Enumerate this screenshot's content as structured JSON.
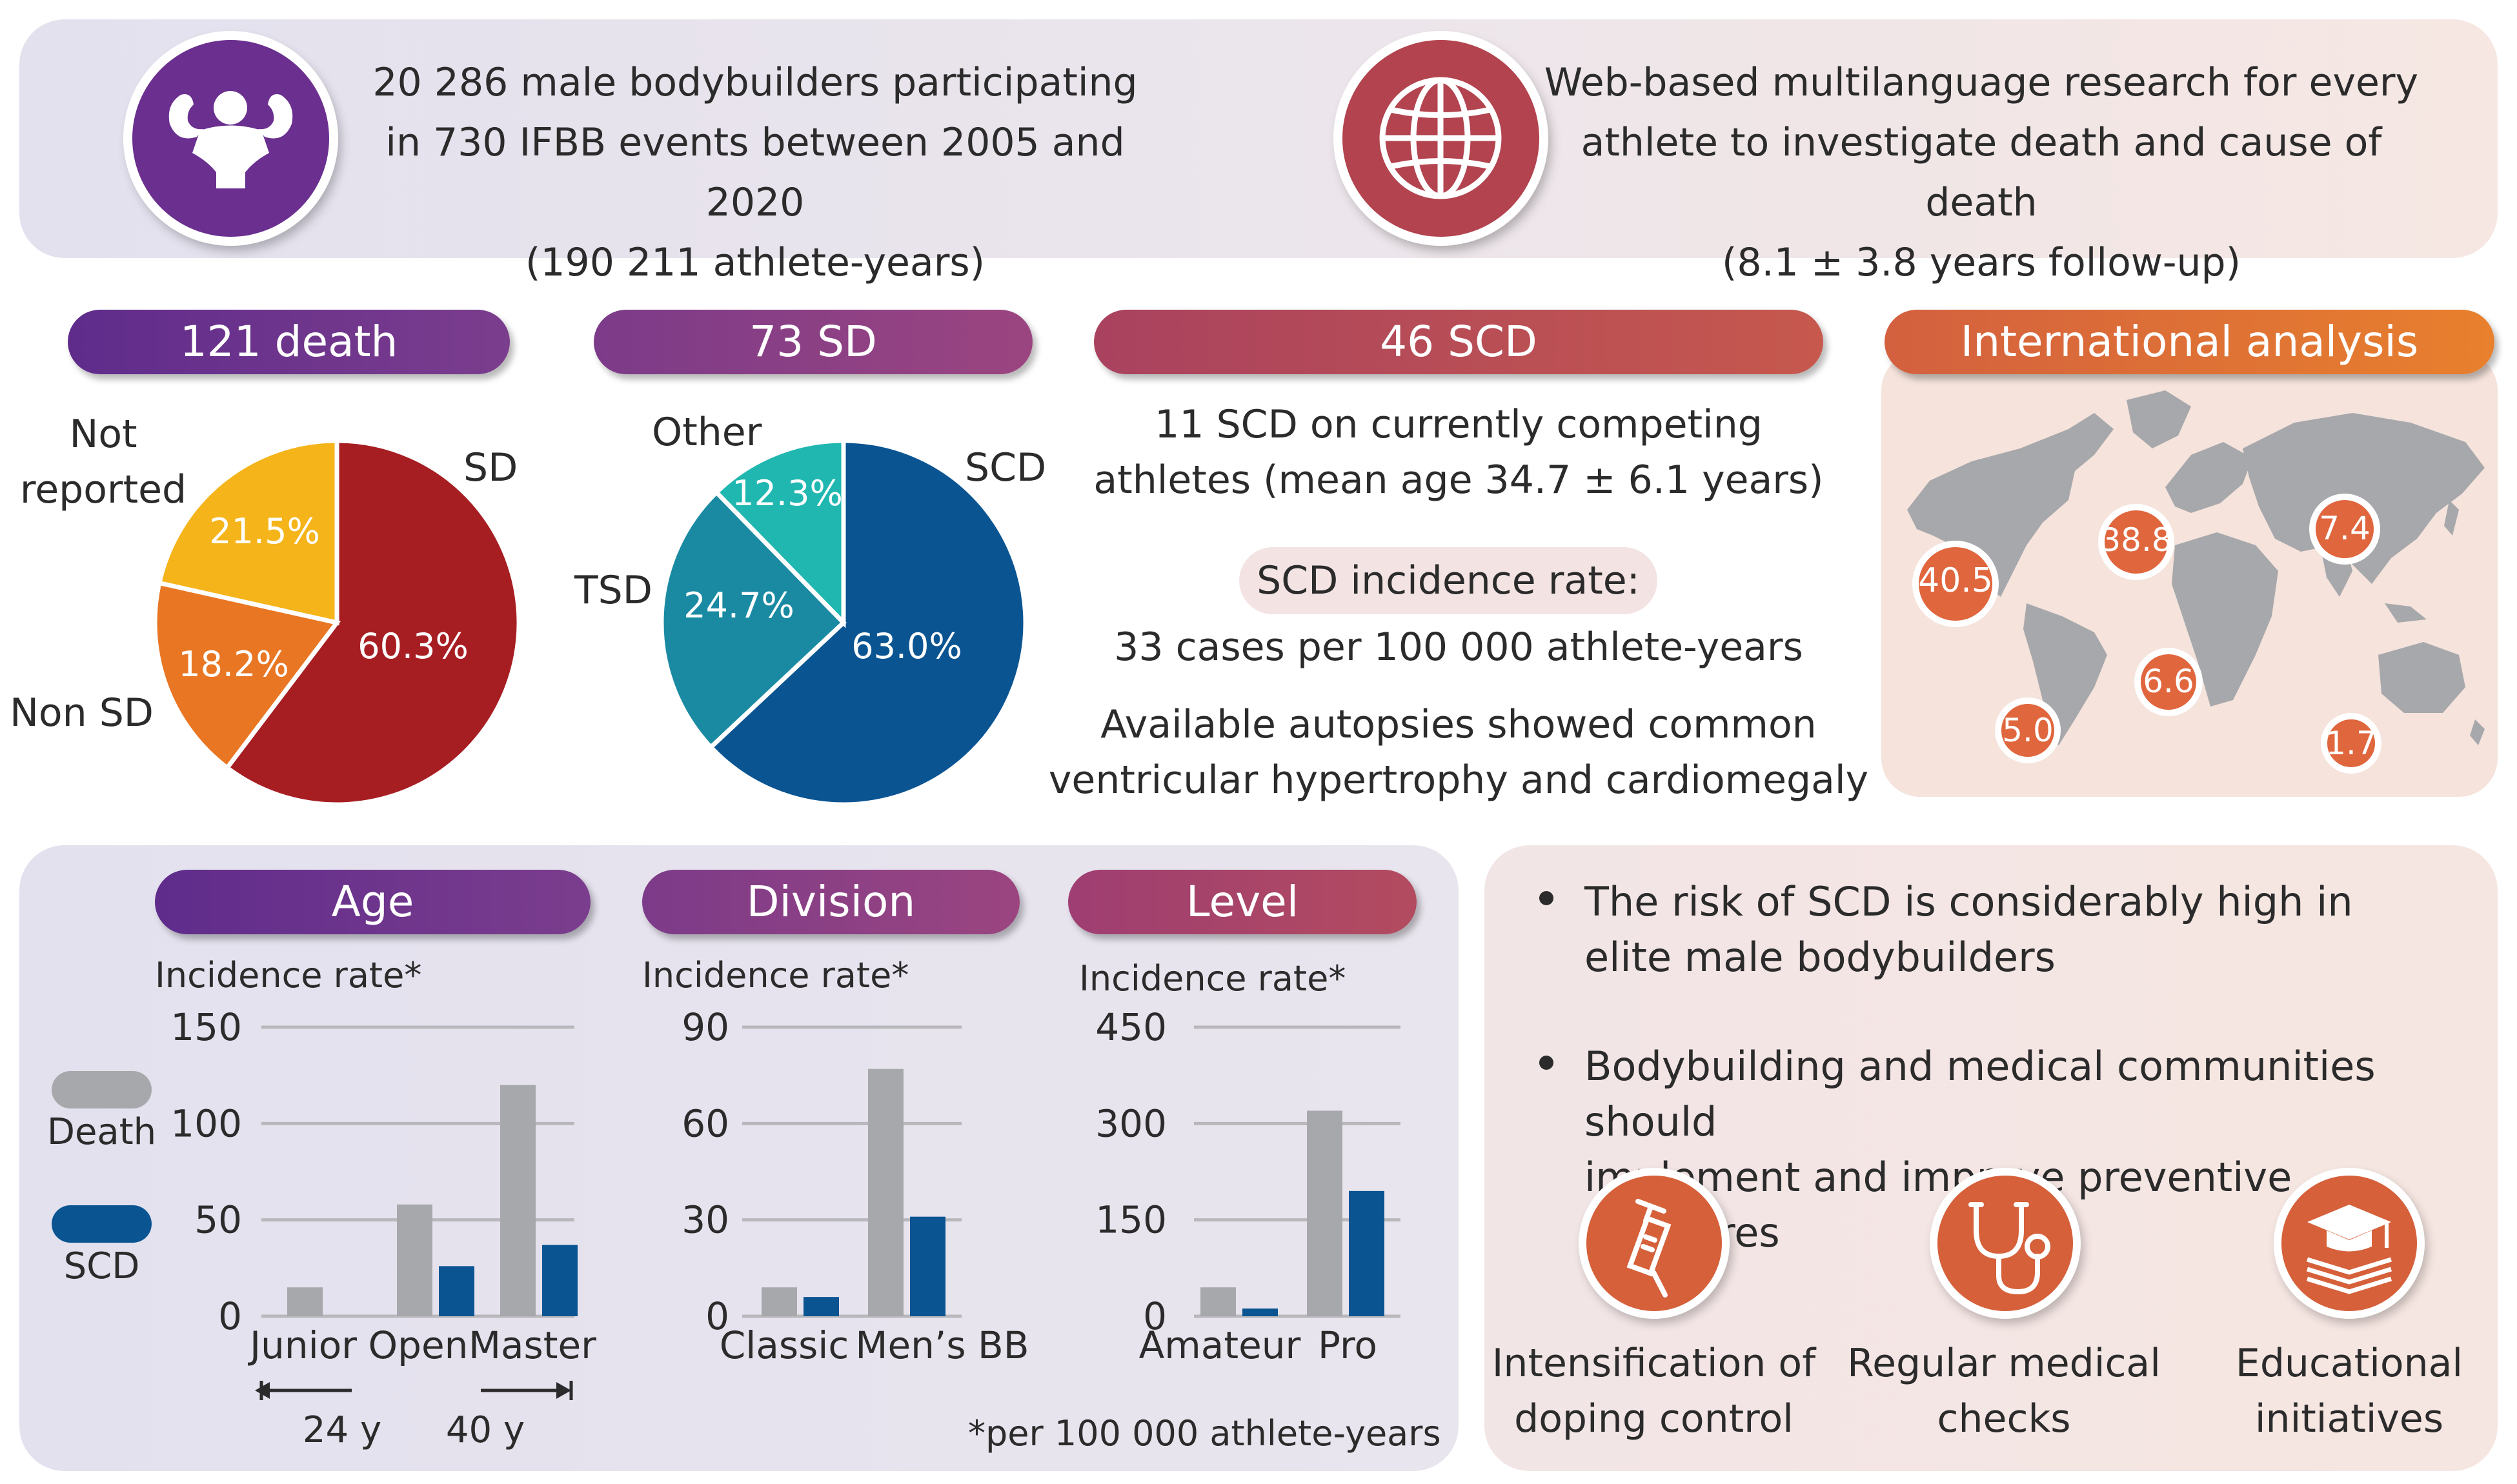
{
  "header": {
    "left_line1": "20 286 male bodybuilders participating",
    "left_line2": "in 730 IFBB events between 2005 and 2020",
    "left_line3": "(190 211 athlete-years)",
    "right_line1": "Web-based multilanguage research for every",
    "right_line2": "athlete to investigate death and cause of death",
    "right_line3": "(8.1 ± 3.8 years follow-up)",
    "left_icon": "bodybuilder-icon",
    "right_icon": "globe-icon"
  },
  "pills": {
    "death": "121 death",
    "sd": "73 SD",
    "scd": "46 SCD",
    "international": "International analysis",
    "age": "Age",
    "division": "Division",
    "level": "Level"
  },
  "pie1": {
    "label_not_reported_1": "Not",
    "label_not_reported_2": "reported",
    "label_sd": "SD",
    "label_non_sd": "Non SD",
    "slices": [
      {
        "name": "SD",
        "value": 60.3,
        "text": "60.3%",
        "color": "#a71e22"
      },
      {
        "name": "Non SD",
        "value": 18.2,
        "text": "18.2%",
        "color": "#e97623"
      },
      {
        "name": "Not reported",
        "value": 21.5,
        "text": "21.5%",
        "color": "#f4b41a"
      }
    ]
  },
  "pie2": {
    "label_other": "Other",
    "label_scd": "SCD",
    "label_tsd": "TSD",
    "slices": [
      {
        "name": "SCD",
        "value": 63.0,
        "text": "63.0%",
        "color": "#0a5492"
      },
      {
        "name": "TSD",
        "value": 24.7,
        "text": "24.7%",
        "color": "#1a8aa3"
      },
      {
        "name": "Other",
        "value": 12.3,
        "text": "12.3%",
        "color": "#1fb7b0"
      }
    ]
  },
  "scd_block": {
    "line1": "11 SCD on currently competing",
    "line2": "athletes (mean age 34.7 ± 6.1 years)",
    "incidence_label": "SCD incidence rate:",
    "incidence_value": "33 cases per 100 000 athlete-years",
    "autopsy1": "Available autopsies showed common",
    "autopsy2": "ventricular hypertrophy and cardiomegaly"
  },
  "map": {
    "values": [
      "40.5",
      "38.8",
      "7.4",
      "6.6",
      "5.0",
      "1.7"
    ]
  },
  "legend": {
    "death": "Death",
    "scd": "SCD",
    "death_color": "#a7a8ab",
    "scd_color": "#0a5492"
  },
  "chart_data": [
    {
      "type": "bar",
      "title": "Age",
      "ylabel": "Incidence rate*",
      "categories": [
        "Junior",
        "Open",
        "Master"
      ],
      "yticks": [
        "150",
        "100",
        "50",
        "0"
      ],
      "ylim": [
        0,
        150
      ],
      "series": [
        {
          "name": "Death",
          "values": [
            15,
            58,
            120
          ]
        },
        {
          "name": "SCD",
          "values": [
            0,
            26,
            37
          ]
        }
      ],
      "annotations": [
        "24 y",
        "40 y"
      ]
    },
    {
      "type": "bar",
      "title": "Division",
      "ylabel": "Incidence rate*",
      "categories": [
        "Classic",
        "Men’s BB"
      ],
      "yticks": [
        "90",
        "60",
        "30",
        "0"
      ],
      "ylim": [
        0,
        90
      ],
      "series": [
        {
          "name": "Death",
          "values": [
            9,
            77
          ]
        },
        {
          "name": "SCD",
          "values": [
            6,
            31
          ]
        }
      ]
    },
    {
      "type": "bar",
      "title": "Level",
      "ylabel": "Incidence rate*",
      "categories": [
        "Amateur",
        "Pro"
      ],
      "yticks": [
        "450",
        "300",
        "150",
        "0"
      ],
      "ylim": [
        0,
        450
      ],
      "series": [
        {
          "name": "Death",
          "values": [
            45,
            320
          ]
        },
        {
          "name": "SCD",
          "values": [
            12,
            195
          ]
        }
      ]
    }
  ],
  "footnote": "*per 100 000 athlete-years",
  "conclusions": {
    "bullet1_line1": "The risk of SCD is considerably high in",
    "bullet1_line2": "elite male bodybuilders",
    "bullet2_line1": "Bodybuilding and medical communities should",
    "bullet2_line2": "implement and improve preventive measures",
    "icon1": "syringe-icon",
    "icon1_line1": "Intensification of",
    "icon1_line2": "doping control",
    "icon2": "stethoscope-icon",
    "icon2_line1": "Regular medical",
    "icon2_line2": "checks",
    "icon3": "graduation-cap-icon",
    "icon3_line1": "Educational",
    "icon3_line2": "initiatives"
  }
}
